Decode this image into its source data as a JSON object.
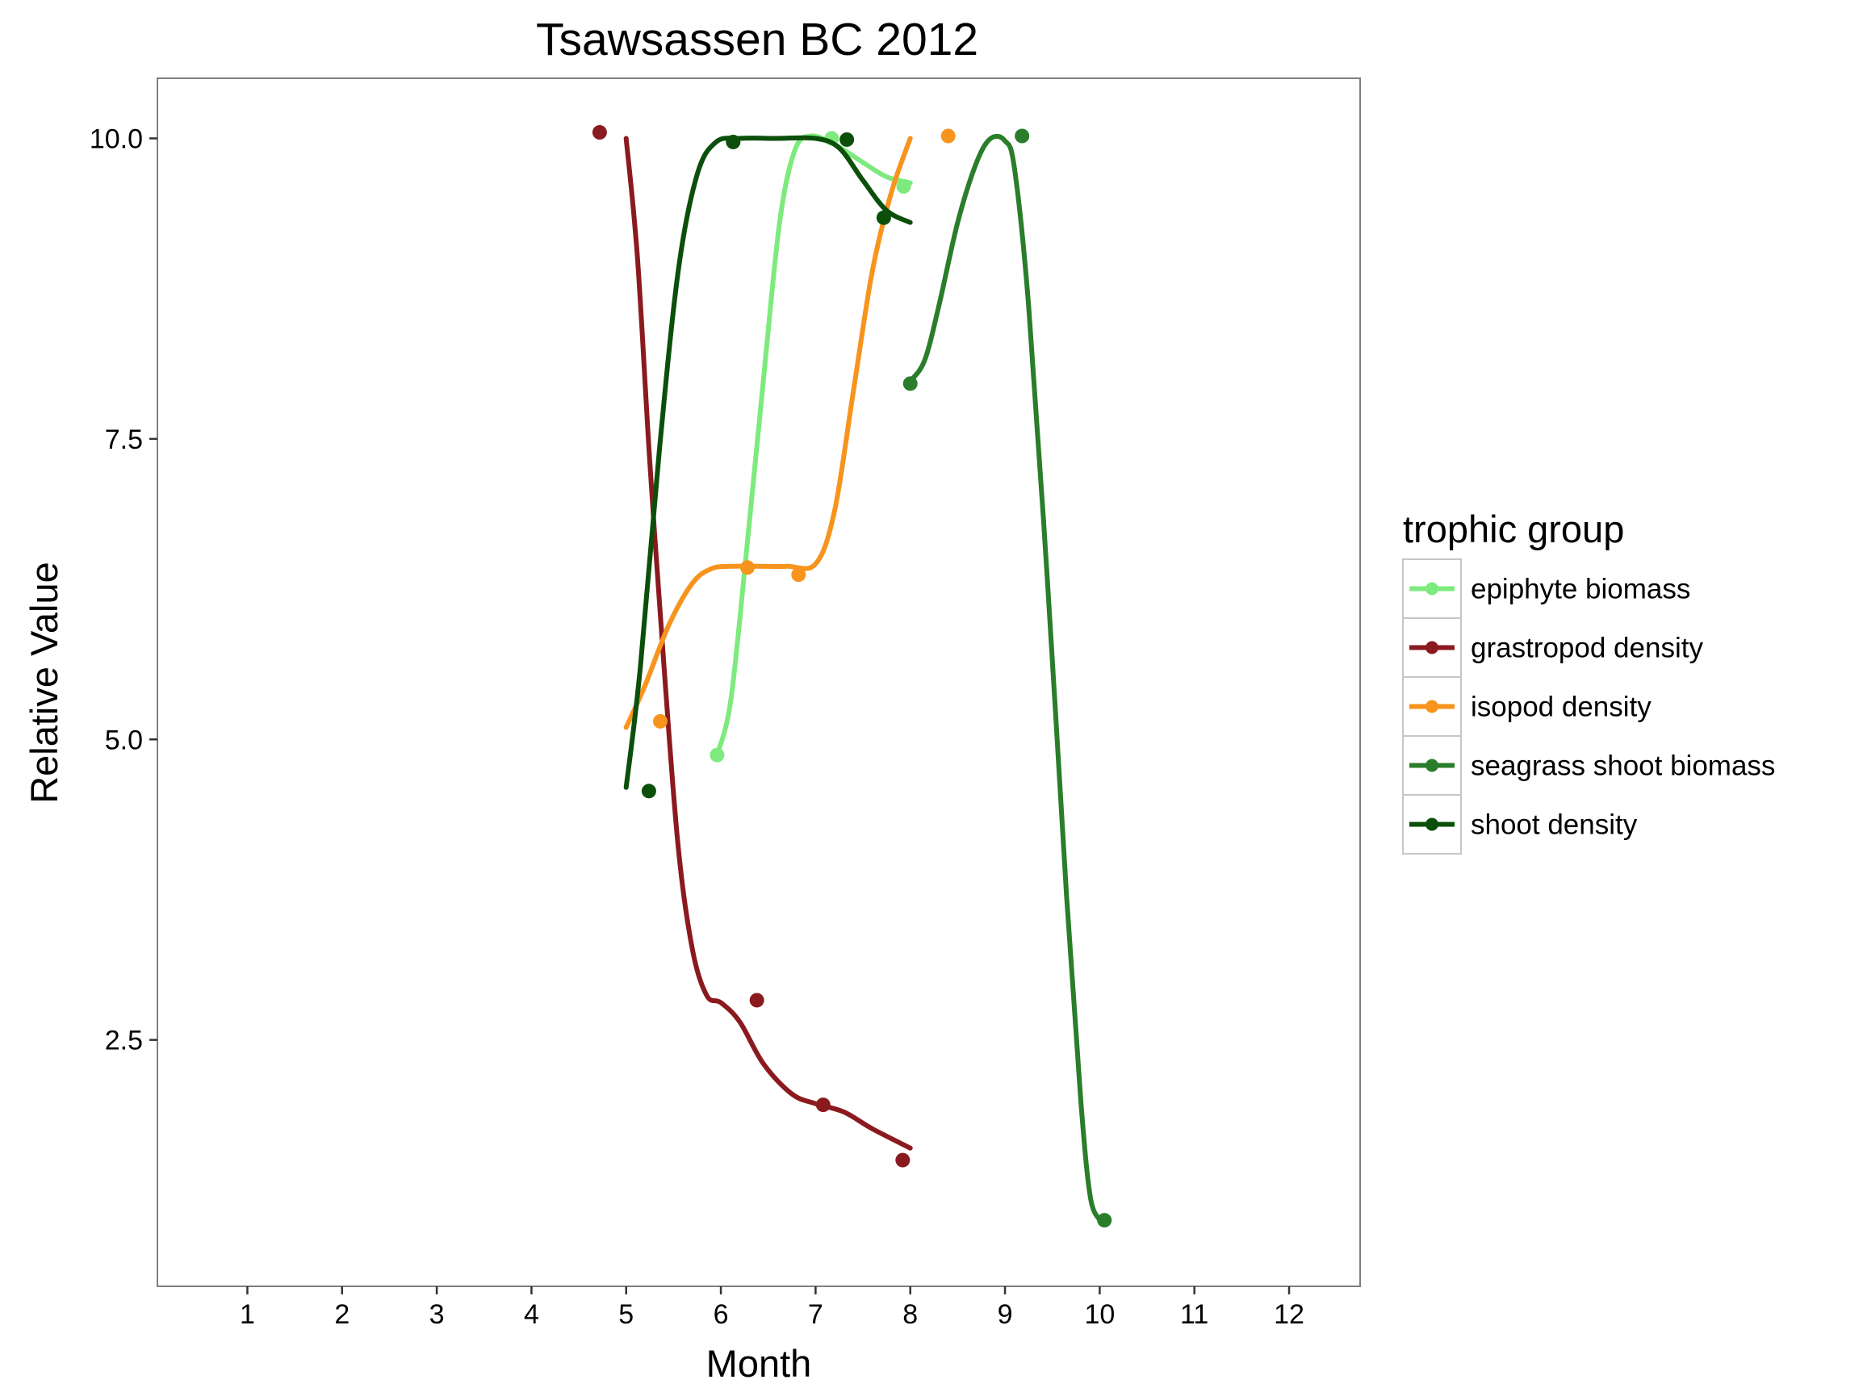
{
  "chart_data": {
    "type": "line",
    "title": "Tsawsassen BC 2012",
    "xlabel": "Month",
    "ylabel": "Relative Value",
    "xlim": [
      0.05,
      12.75
    ],
    "ylim": [
      0.45,
      10.5
    ],
    "x_ticks": [
      1,
      2,
      3,
      4,
      5,
      6,
      7,
      8,
      9,
      10,
      11,
      12
    ],
    "x_tick_labels": [
      "1",
      "2",
      "3",
      "4",
      "5",
      "6",
      "7",
      "8",
      "9",
      "10",
      "11",
      "12"
    ],
    "y_ticks": [
      2.5,
      5.0,
      7.5,
      10.0
    ],
    "y_tick_labels": [
      "2.5",
      "5.0",
      "7.5",
      "10.0"
    ],
    "grid": false,
    "legend": {
      "title": "trophic group",
      "position": "right"
    },
    "series": [
      {
        "name": "epiphyte biomass",
        "color": "#7EEA7E",
        "points": [
          [
            5.96,
            4.87
          ],
          [
            7.17,
            10.0
          ],
          [
            7.93,
            9.6
          ]
        ],
        "curve": [
          [
            5.96,
            4.87
          ],
          [
            6.1,
            5.3
          ],
          [
            6.25,
            6.4
          ],
          [
            6.45,
            8.0
          ],
          [
            6.62,
            9.3
          ],
          [
            6.78,
            9.9
          ],
          [
            6.95,
            10.02
          ],
          [
            7.2,
            9.95
          ],
          [
            7.5,
            9.8
          ],
          [
            7.75,
            9.68
          ],
          [
            8.0,
            9.63
          ]
        ]
      },
      {
        "name": "grastropod density",
        "color": "#8B1A1F",
        "points": [
          [
            4.72,
            10.05
          ],
          [
            6.38,
            2.83
          ],
          [
            7.08,
            1.96
          ],
          [
            7.92,
            1.5
          ]
        ],
        "curve": [
          [
            5.0,
            10.0
          ],
          [
            5.12,
            9.0
          ],
          [
            5.25,
            7.3
          ],
          [
            5.4,
            5.6
          ],
          [
            5.55,
            4.1
          ],
          [
            5.7,
            3.25
          ],
          [
            5.85,
            2.87
          ],
          [
            6.0,
            2.81
          ],
          [
            6.2,
            2.65
          ],
          [
            6.45,
            2.3
          ],
          [
            6.75,
            2.05
          ],
          [
            7.0,
            1.97
          ],
          [
            7.3,
            1.9
          ],
          [
            7.6,
            1.76
          ],
          [
            8.0,
            1.6
          ]
        ]
      },
      {
        "name": "isopod density",
        "color": "#F7941D",
        "points": [
          [
            5.36,
            5.15
          ],
          [
            6.28,
            6.43
          ],
          [
            6.82,
            6.37
          ],
          [
            8.4,
            10.02
          ]
        ],
        "curve": [
          [
            5.0,
            5.1
          ],
          [
            5.2,
            5.45
          ],
          [
            5.45,
            5.95
          ],
          [
            5.7,
            6.3
          ],
          [
            5.9,
            6.42
          ],
          [
            6.1,
            6.44
          ],
          [
            6.4,
            6.44
          ],
          [
            6.7,
            6.44
          ],
          [
            7.0,
            6.46
          ],
          [
            7.2,
            6.9
          ],
          [
            7.4,
            7.9
          ],
          [
            7.6,
            8.9
          ],
          [
            7.8,
            9.55
          ],
          [
            8.0,
            10.0
          ]
        ]
      },
      {
        "name": "seagrass shoot biomass",
        "color": "#2A7D2A",
        "points": [
          [
            8.0,
            7.96
          ],
          [
            9.18,
            10.02
          ],
          [
            10.05,
            1.0
          ]
        ],
        "curve": [
          [
            8.0,
            7.98
          ],
          [
            8.15,
            8.15
          ],
          [
            8.3,
            8.6
          ],
          [
            8.5,
            9.3
          ],
          [
            8.7,
            9.8
          ],
          [
            8.85,
            10.0
          ],
          [
            9.0,
            9.98
          ],
          [
            9.1,
            9.75
          ],
          [
            9.25,
            8.6
          ],
          [
            9.45,
            6.3
          ],
          [
            9.65,
            3.7
          ],
          [
            9.8,
            2.0
          ],
          [
            9.9,
            1.2
          ],
          [
            10.0,
            1.0
          ]
        ]
      },
      {
        "name": "shoot density",
        "color": "#0B4F0B",
        "points": [
          [
            5.24,
            4.57
          ],
          [
            6.13,
            9.97
          ],
          [
            7.33,
            9.99
          ],
          [
            7.72,
            9.34
          ]
        ],
        "curve": [
          [
            5.0,
            4.6
          ],
          [
            5.15,
            5.6
          ],
          [
            5.35,
            7.4
          ],
          [
            5.55,
            8.9
          ],
          [
            5.75,
            9.7
          ],
          [
            5.95,
            9.97
          ],
          [
            6.2,
            10.0
          ],
          [
            6.6,
            10.0
          ],
          [
            7.0,
            10.0
          ],
          [
            7.25,
            9.92
          ],
          [
            7.5,
            9.65
          ],
          [
            7.75,
            9.4
          ],
          [
            8.0,
            9.3
          ]
        ]
      }
    ]
  }
}
